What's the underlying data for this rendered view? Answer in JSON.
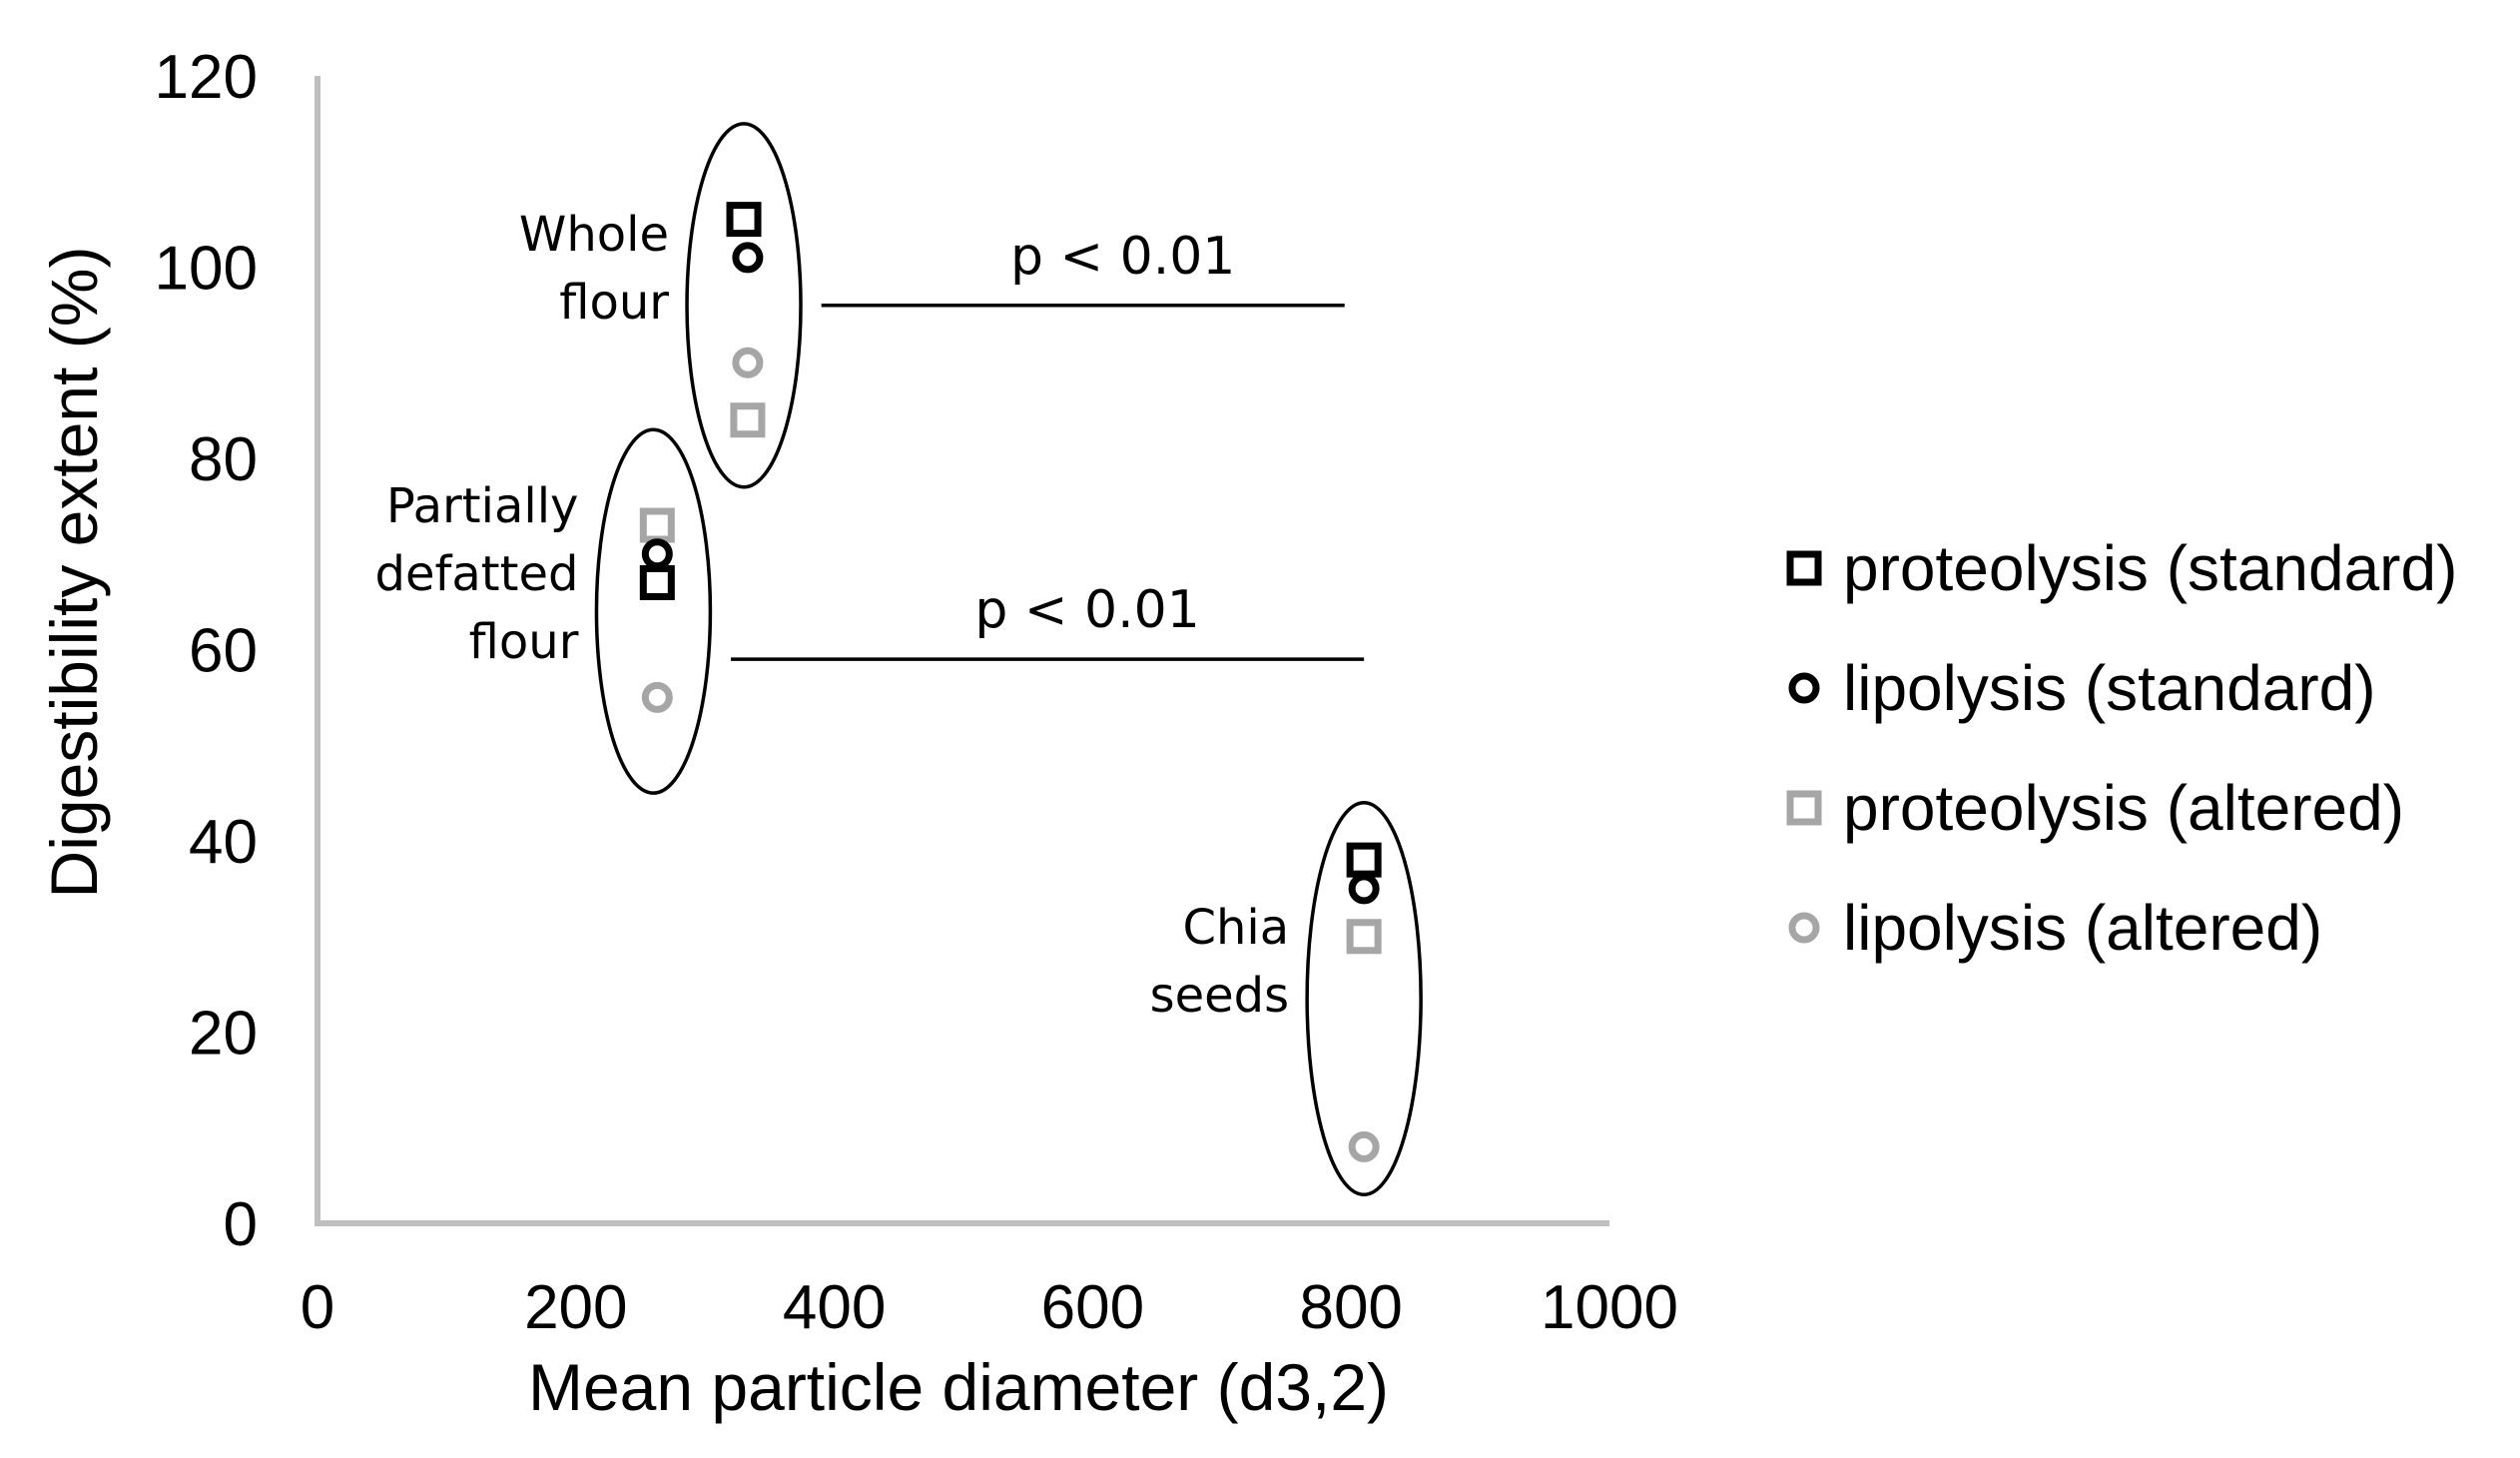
{
  "chart_data": {
    "type": "scatter",
    "xlabel": "Mean particle diameter (d3,2)",
    "ylabel": "Digestibility extent (%)",
    "xlim": [
      0,
      1000
    ],
    "ylim": [
      0,
      120
    ],
    "xticks": [
      0,
      200,
      400,
      600,
      800,
      1000
    ],
    "yticks": [
      0,
      20,
      40,
      60,
      80,
      100,
      120
    ],
    "grid": false,
    "legend_position": "right",
    "series": [
      {
        "name": "proteolysis (standard)",
        "marker": "square",
        "color": "#000000",
        "points": [
          {
            "x": 330,
            "y": 105
          },
          {
            "x": 263,
            "y": 67
          },
          {
            "x": 810,
            "y": 38
          }
        ]
      },
      {
        "name": "lipolysis (standard)",
        "marker": "circle",
        "color": "#000000",
        "points": [
          {
            "x": 333,
            "y": 101
          },
          {
            "x": 263,
            "y": 70
          },
          {
            "x": 810,
            "y": 35
          }
        ]
      },
      {
        "name": "proteolysis (altered)",
        "marker": "square",
        "color": "#a6a6a6",
        "points": [
          {
            "x": 333,
            "y": 84
          },
          {
            "x": 263,
            "y": 73
          },
          {
            "x": 810,
            "y": 30
          }
        ]
      },
      {
        "name": "lipolysis (altered)",
        "marker": "circle",
        "color": "#a6a6a6",
        "points": [
          {
            "x": 333,
            "y": 90
          },
          {
            "x": 263,
            "y": 55
          },
          {
            "x": 810,
            "y": 8
          }
        ]
      }
    ],
    "groups": [
      {
        "label": [
          "Whole",
          "flour"
        ],
        "x": 330,
        "y_range": [
          77,
          115
        ]
      },
      {
        "label": [
          "Partially",
          "defatted",
          "flour"
        ],
        "x": 260,
        "y_range": [
          45,
          83
        ]
      },
      {
        "label": [
          "Chia",
          "seeds"
        ],
        "x": 810,
        "y_range": [
          3,
          44
        ]
      }
    ],
    "annotations": [
      {
        "text": "p < 0.01",
        "x_range": [
          390,
          795
        ],
        "y": 96
      },
      {
        "text": "p < 0.01",
        "x_range": [
          320,
          810
        ],
        "y": 59
      }
    ]
  },
  "colors": {
    "axis": "#bfbfbf",
    "standard": "#000000",
    "altered": "#a6a6a6"
  }
}
